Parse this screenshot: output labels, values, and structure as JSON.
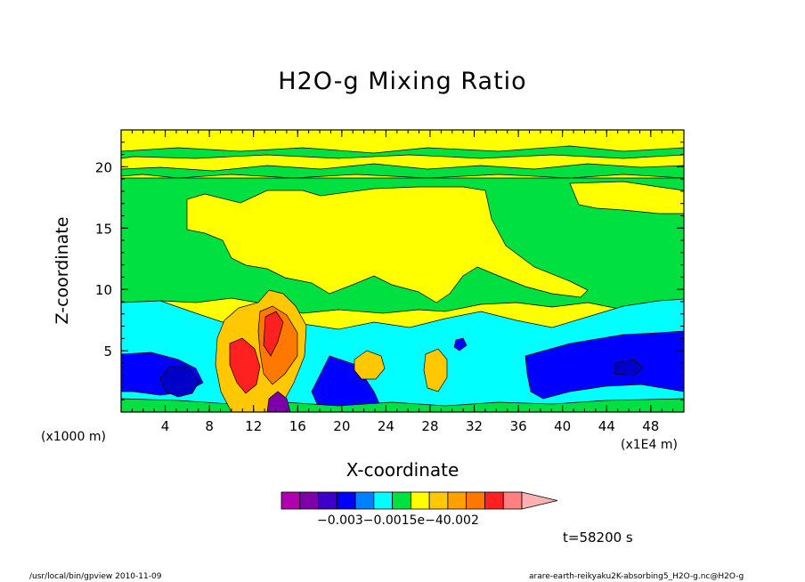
{
  "chart_data": {
    "type": "heatmap",
    "title": "H2O-g Mixing Ratio",
    "xlabel": "X-coordinate",
    "ylabel": "Z-coordinate",
    "x_unit_left": "(x1000 m)",
    "x_unit_right": "(x1E4 m)",
    "xlim": [
      0,
      51
    ],
    "ylim": [
      0,
      23
    ],
    "x_ticks": [
      4,
      8,
      12,
      16,
      20,
      24,
      28,
      32,
      36,
      40,
      44,
      48
    ],
    "y_ticks": [
      5,
      10,
      15,
      20
    ],
    "colorbar": {
      "colors": [
        "#b000b0",
        "#7d00a8",
        "#3c00c8",
        "#0000ff",
        "#0080ff",
        "#00ffff",
        "#00e040",
        "#ffff00",
        "#ffc800",
        "#ffa000",
        "#ff7800",
        "#ff2020",
        "#ff8080",
        "#ffb0b0"
      ],
      "labels_text": "−0.003−0.0015e−40.002"
    },
    "time_label": "t=58200 s"
  },
  "footer": {
    "left": "/usr/local/bin/gpview 2010-11-09",
    "right": "arare-earth-reikyaku2K-absorbing5_H2O-g.nc@H2O-g"
  }
}
